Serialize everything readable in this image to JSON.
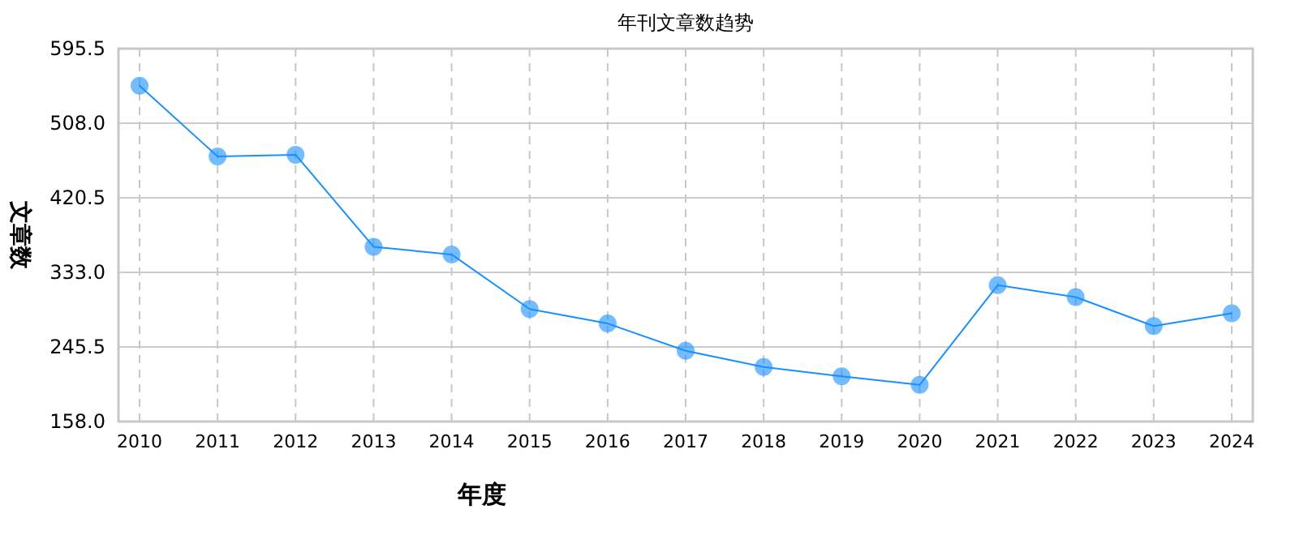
{
  "chart_data": {
    "type": "line",
    "title": "年刊文章数趋势",
    "xlabel": "年度",
    "ylabel": "文章数",
    "categories": [
      "2010",
      "2011",
      "2012",
      "2013",
      "2014",
      "2015",
      "2016",
      "2017",
      "2018",
      "2019",
      "2020",
      "2021",
      "2022",
      "2023",
      "2024"
    ],
    "series": [
      {
        "color": "#1890ff",
        "values": [
          552,
          469,
          471,
          363,
          354,
          290,
          273,
          241,
          222,
          211,
          201,
          318,
          304,
          270,
          285
        ]
      }
    ],
    "ylim": [
      158,
      595.5
    ],
    "yticks": [
      {
        "value": 158,
        "label": "158.0"
      },
      245.5,
      {
        "value": 333,
        "label": "333.0"
      },
      420.5,
      {
        "value": 508,
        "label": "508.0"
      },
      595.5
    ],
    "grid": true,
    "marker": "circle",
    "line_style": "solid"
  }
}
